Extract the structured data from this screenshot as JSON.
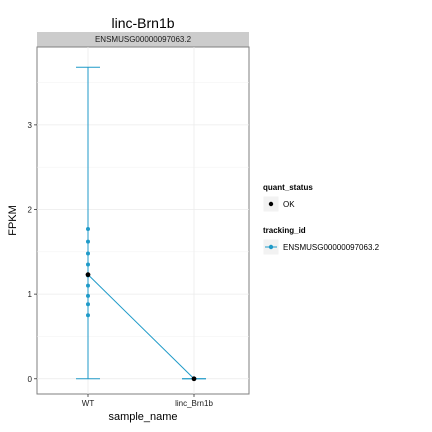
{
  "chart_data": {
    "type": "line",
    "title": "linc-Brn1b",
    "facet": "ENSMUSG00000097063.2",
    "xlabel": "sample_name",
    "ylabel": "FPKM",
    "categories": [
      "WT",
      "linc_Brn1b"
    ],
    "ylim": [
      -0.18,
      3.92
    ],
    "yticks": [
      0,
      1,
      2,
      3
    ],
    "grid": true,
    "legend_position": "right",
    "series": [
      {
        "name": "ENSMUSG00000097063.2",
        "color": "#1f9ac8",
        "values": [
          1.23,
          0.0
        ],
        "error_low": [
          0.0,
          0.0
        ],
        "error_high": [
          3.68,
          0.0
        ],
        "replicates": [
          [
            0.75,
            0.88,
            0.98,
            1.1,
            1.22,
            1.35,
            1.48,
            1.62,
            1.77
          ],
          [
            0.0
          ]
        ]
      }
    ],
    "legends": [
      {
        "title": "quant_status",
        "items": [
          {
            "label": "OK",
            "shape": "point",
            "color": "#000000"
          }
        ]
      },
      {
        "title": "tracking_id",
        "items": [
          {
            "label": "ENSMUSG00000097063.2",
            "shape": "line-point",
            "color": "#1f9ac8"
          }
        ]
      }
    ]
  }
}
